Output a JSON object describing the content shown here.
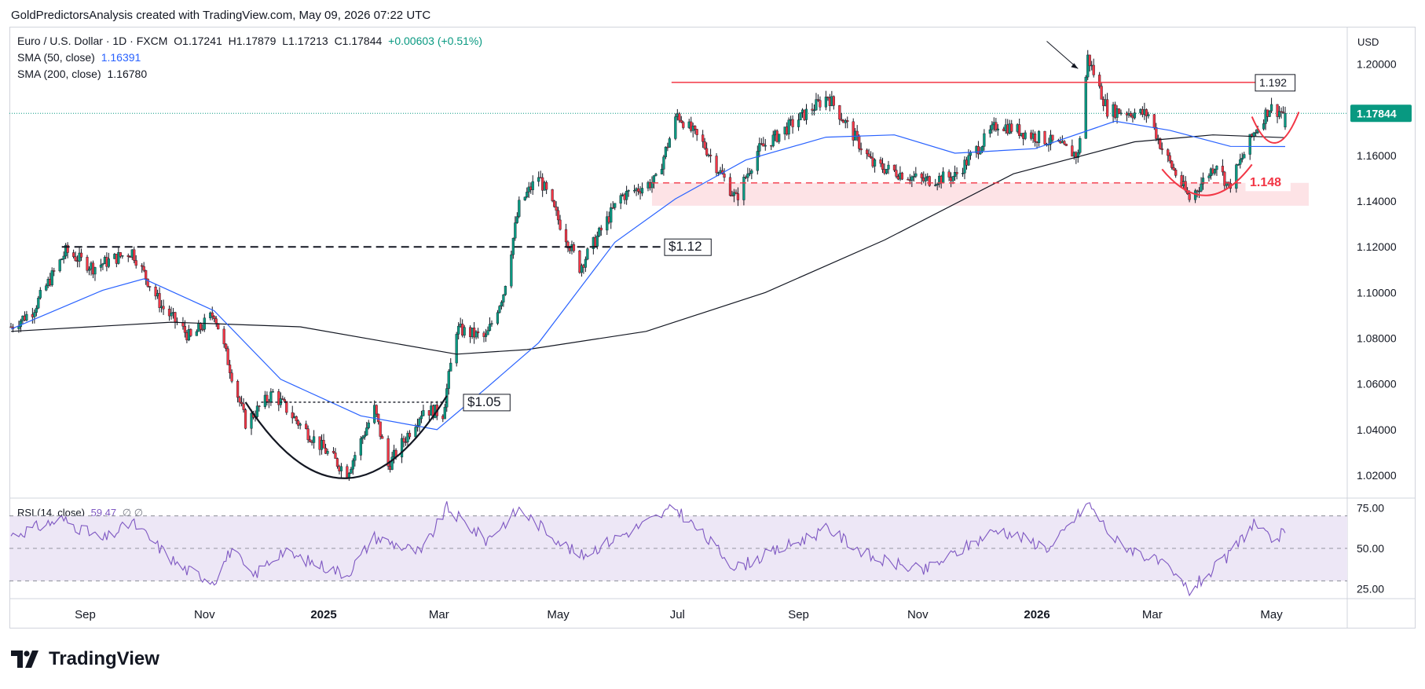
{
  "header": {
    "credit": "GoldPredictorsAnalysis created with TradingView.com, May 09, 2026 07:22 UTC"
  },
  "legend": {
    "symbol": "Euro / U.S. Dollar · 1D · FXCM",
    "open": "O1.17241",
    "high": "H1.17879",
    "low": "L1.17213",
    "close": "C1.17844",
    "change": "+0.00603 (+0.51%)",
    "sma50_label": "SMA (50, close)",
    "sma50_value": "1.16391",
    "sma200_label": "SMA (200, close)",
    "sma200_value": "1.16780",
    "rsi_label": "RSI (14, close)",
    "rsi_value": "59.47",
    "rsi_extra": "∅ ∅"
  },
  "price_axis": {
    "currency": "USD",
    "ticks": [
      "1.20000",
      "1.18000",
      "1.16000",
      "1.14000",
      "1.12000",
      "1.10000",
      "1.08000",
      "1.06000",
      "1.04000",
      "1.02000"
    ],
    "last_price": "1.17844"
  },
  "rsi_axis": {
    "ticks": [
      "75.00",
      "50.00",
      "25.00"
    ]
  },
  "time_axis": {
    "labels": [
      "Sep",
      "Nov",
      "2025",
      "Mar",
      "May",
      "Jul",
      "Sep",
      "Nov",
      "2026",
      "Mar",
      "May"
    ]
  },
  "annotations": {
    "resistance_192": "1.192",
    "support_148": "1.148",
    "level_112": "$1.12",
    "level_105": "$1.05"
  },
  "branding": {
    "logo_text": "TradingView"
  },
  "colors": {
    "up": "#089981",
    "down": "#f23645",
    "sma50": "#2962ff",
    "sma200": "#131722",
    "rsi": "#7e57c2",
    "rsi_band": "#ede7f6",
    "red_line": "#f23645",
    "last_price_bg": "#089981"
  },
  "chart_data": {
    "type": "candlestick",
    "title": "Euro / U.S. Dollar · 1D · FXCM",
    "ylim": [
      1.01,
      1.215
    ],
    "y_ticks": [
      1.02,
      1.04,
      1.06,
      1.08,
      1.1,
      1.12,
      1.14,
      1.16,
      1.18,
      1.2
    ],
    "x_labels": [
      "Sep",
      "Nov",
      "2025",
      "Mar",
      "May",
      "Jul",
      "Sep",
      "Nov",
      "2026",
      "Mar",
      "May"
    ],
    "close_path": [
      {
        "date": "2024-07-25",
        "close": 1.085
      },
      {
        "date": "2024-08-05",
        "close": 1.092
      },
      {
        "date": "2024-08-22",
        "close": 1.118
      },
      {
        "date": "2024-09-05",
        "close": 1.111
      },
      {
        "date": "2024-09-25",
        "close": 1.118
      },
      {
        "date": "2024-10-10",
        "close": 1.094
      },
      {
        "date": "2024-10-25",
        "close": 1.08
      },
      {
        "date": "2024-11-06",
        "close": 1.091
      },
      {
        "date": "2024-11-22",
        "close": 1.043
      },
      {
        "date": "2024-12-06",
        "close": 1.056
      },
      {
        "date": "2024-12-20",
        "close": 1.042
      },
      {
        "date": "2025-01-13",
        "close": 1.021
      },
      {
        "date": "2025-01-27",
        "close": 1.049
      },
      {
        "date": "2025-02-03",
        "close": 1.024
      },
      {
        "date": "2025-02-21",
        "close": 1.049
      },
      {
        "date": "2025-03-03",
        "close": 1.047
      },
      {
        "date": "2025-03-10",
        "close": 1.084
      },
      {
        "date": "2025-03-25",
        "close": 1.08
      },
      {
        "date": "2025-04-03",
        "close": 1.1
      },
      {
        "date": "2025-04-11",
        "close": 1.138
      },
      {
        "date": "2025-04-21",
        "close": 1.151
      },
      {
        "date": "2025-05-12",
        "close": 1.111
      },
      {
        "date": "2025-06-02",
        "close": 1.142
      },
      {
        "date": "2025-06-20",
        "close": 1.149
      },
      {
        "date": "2025-07-01",
        "close": 1.178
      },
      {
        "date": "2025-07-15",
        "close": 1.164
      },
      {
        "date": "2025-07-31",
        "close": 1.141
      },
      {
        "date": "2025-08-11",
        "close": 1.162
      },
      {
        "date": "2025-09-16",
        "close": 1.186
      },
      {
        "date": "2025-10-09",
        "close": 1.156
      },
      {
        "date": "2025-11-04",
        "close": 1.149
      },
      {
        "date": "2025-11-20",
        "close": 1.151
      },
      {
        "date": "2025-12-12",
        "close": 1.174
      },
      {
        "date": "2026-01-08",
        "close": 1.166
      },
      {
        "date": "2026-01-22",
        "close": 1.16
      },
      {
        "date": "2026-01-27",
        "close": 1.203
      },
      {
        "date": "2026-02-06",
        "close": 1.18
      },
      {
        "date": "2026-02-27",
        "close": 1.178
      },
      {
        "date": "2026-03-06",
        "close": 1.163
      },
      {
        "date": "2026-03-20",
        "close": 1.141
      },
      {
        "date": "2026-04-03",
        "close": 1.157
      },
      {
        "date": "2026-04-09",
        "close": 1.146
      },
      {
        "date": "2026-04-22",
        "close": 1.17
      },
      {
        "date": "2026-04-30",
        "close": 1.181
      },
      {
        "date": "2026-05-08",
        "close": 1.17844
      }
    ],
    "sma50_path": [
      {
        "date": "2024-07-25",
        "value": 1.084
      },
      {
        "date": "2024-09-10",
        "value": 1.101
      },
      {
        "date": "2024-10-01",
        "value": 1.106
      },
      {
        "date": "2024-11-06",
        "value": 1.092
      },
      {
        "date": "2024-12-10",
        "value": 1.062
      },
      {
        "date": "2025-01-20",
        "value": 1.046
      },
      {
        "date": "2025-02-28",
        "value": 1.04
      },
      {
        "date": "2025-03-25",
        "value": 1.058
      },
      {
        "date": "2025-04-21",
        "value": 1.078
      },
      {
        "date": "2025-05-30",
        "value": 1.122
      },
      {
        "date": "2025-06-30",
        "value": 1.141
      },
      {
        "date": "2025-08-05",
        "value": 1.158
      },
      {
        "date": "2025-09-15",
        "value": 1.168
      },
      {
        "date": "2025-10-20",
        "value": 1.169
      },
      {
        "date": "2025-11-20",
        "value": 1.161
      },
      {
        "date": "2025-12-31",
        "value": 1.163
      },
      {
        "date": "2026-02-10",
        "value": 1.175
      },
      {
        "date": "2026-03-10",
        "value": 1.171
      },
      {
        "date": "2026-04-10",
        "value": 1.164
      },
      {
        "date": "2026-05-08",
        "value": 1.16391
      }
    ],
    "sma200_path": [
      {
        "date": "2024-07-25",
        "value": 1.083
      },
      {
        "date": "2024-10-15",
        "value": 1.087
      },
      {
        "date": "2024-12-20",
        "value": 1.085
      },
      {
        "date": "2025-03-10",
        "value": 1.073
      },
      {
        "date": "2025-04-15",
        "value": 1.075
      },
      {
        "date": "2025-06-15",
        "value": 1.083
      },
      {
        "date": "2025-08-15",
        "value": 1.1
      },
      {
        "date": "2025-10-15",
        "value": 1.123
      },
      {
        "date": "2025-12-20",
        "value": 1.152
      },
      {
        "date": "2026-02-20",
        "value": 1.166
      },
      {
        "date": "2026-04-01",
        "value": 1.169
      },
      {
        "date": "2026-05-08",
        "value": 1.1678
      }
    ],
    "rsi": {
      "ylim": [
        20,
        80
      ],
      "band": [
        30,
        70
      ],
      "ticks": [
        75,
        50,
        25
      ],
      "path": [
        {
          "date": "2024-07-25",
          "value": 58
        },
        {
          "date": "2024-08-20",
          "value": 68
        },
        {
          "date": "2024-09-10",
          "value": 55
        },
        {
          "date": "2024-09-25",
          "value": 66
        },
        {
          "date": "2024-10-20",
          "value": 38
        },
        {
          "date": "2024-11-06",
          "value": 30
        },
        {
          "date": "2024-11-15",
          "value": 50
        },
        {
          "date": "2024-11-25",
          "value": 32
        },
        {
          "date": "2024-12-10",
          "value": 48
        },
        {
          "date": "2025-01-13",
          "value": 34
        },
        {
          "date": "2025-01-27",
          "value": 57
        },
        {
          "date": "2025-02-20",
          "value": 47
        },
        {
          "date": "2025-03-05",
          "value": 75
        },
        {
          "date": "2025-03-25",
          "value": 55
        },
        {
          "date": "2025-04-11",
          "value": 74
        },
        {
          "date": "2025-05-12",
          "value": 45
        },
        {
          "date": "2025-06-30",
          "value": 75
        },
        {
          "date": "2025-07-31",
          "value": 38
        },
        {
          "date": "2025-09-16",
          "value": 62
        },
        {
          "date": "2025-10-09",
          "value": 44
        },
        {
          "date": "2025-11-04",
          "value": 36
        },
        {
          "date": "2025-12-12",
          "value": 62
        },
        {
          "date": "2026-01-08",
          "value": 50
        },
        {
          "date": "2026-01-27",
          "value": 78
        },
        {
          "date": "2026-02-10",
          "value": 55
        },
        {
          "date": "2026-03-06",
          "value": 40
        },
        {
          "date": "2026-03-20",
          "value": 24
        },
        {
          "date": "2026-04-09",
          "value": 45
        },
        {
          "date": "2026-04-22",
          "value": 66
        },
        {
          "date": "2026-04-30",
          "value": 55
        },
        {
          "date": "2026-05-08",
          "value": 59.47
        }
      ]
    },
    "levels": [
      {
        "label": "1.192",
        "value": 1.192,
        "style": "solid",
        "color": "#f23645",
        "from": "2025-06-28",
        "to": "2026-05-08"
      },
      {
        "label": "1.148",
        "value": 1.148,
        "style": "dashed",
        "color": "#f23645",
        "from": "2025-06-18",
        "to": "2026-05-08"
      },
      {
        "label": "$1.12",
        "value": 1.12,
        "style": "dashed",
        "color": "#131722",
        "from": "2024-08-20",
        "to": "2025-06-28"
      },
      {
        "label": "$1.05",
        "value": 1.052,
        "style": "dotted",
        "color": "#131722",
        "from": "2024-11-30",
        "to": "2025-03-05"
      }
    ],
    "support_zone": {
      "from": "2025-06-18",
      "to": "2026-05-08",
      "ylim": [
        1.138,
        1.148
      ]
    },
    "patterns": [
      {
        "type": "arc",
        "from": "2024-11-22",
        "to": "2025-03-05",
        "bottom": 1.018,
        "color": "#131722"
      },
      {
        "type": "arc",
        "from": "2026-03-06",
        "to": "2026-04-21",
        "bottom": 1.142,
        "color": "#f23645"
      },
      {
        "type": "arc",
        "from": "2026-04-21",
        "to": "2026-05-15",
        "bottom": 1.165,
        "color": "#f23645"
      }
    ],
    "arrow": {
      "from_date": "2026-01-06",
      "from_value": 1.21,
      "to_date": "2026-01-22",
      "to_value": 1.198
    }
  }
}
